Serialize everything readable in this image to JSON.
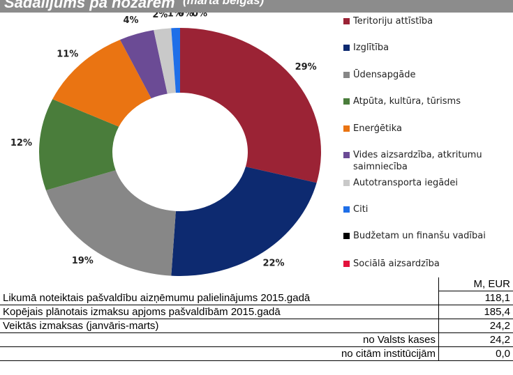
{
  "header": {
    "title": "Sadalījums pa nozarēm",
    "subtitle": "(marta beigās)"
  },
  "chart_data": {
    "type": "donut",
    "categories": [
      "Teritoriju attīstība",
      "Izglītība",
      "Ūdensapgāde",
      "Atpūta, kultūra, tūrisms",
      "Enerģētika",
      "Vides aizsardzība, atkritumu saimniecība",
      "Autotransporta iegādei",
      "Citi",
      "Budžetam un finanšu vadībai",
      "Sociālā aizsardzība"
    ],
    "values": [
      29,
      22,
      19,
      12,
      11,
      4,
      2,
      1,
      0,
      0
    ],
    "value_labels": [
      "29%",
      "22%",
      "19%",
      "12%",
      "11%",
      "4%",
      "2%",
      "1%",
      "0%",
      "0%"
    ],
    "colors": [
      "#9b2335",
      "#0d2a70",
      "#878787",
      "#4a7d3b",
      "#ea7412",
      "#6b4b95",
      "#c9c9c9",
      "#1f6fe8",
      "#000000",
      "#e3123c"
    ]
  },
  "table": {
    "column_header": "M, EUR",
    "rows": [
      [
        "Likumā noteiktais pašvaldību aizņēmumu palielinājums 2015.gadā",
        "118,1"
      ],
      [
        "Kopējais plānotais izmaksu apjoms pašvaldībām 2015.gadā",
        "185,4"
      ],
      [
        "Veiktās izmaksas (janvāris-marts)",
        "24,2"
      ],
      [
        "no Valsts kases",
        "24,2"
      ],
      [
        "no citām institūcijām",
        "0,0"
      ]
    ]
  }
}
